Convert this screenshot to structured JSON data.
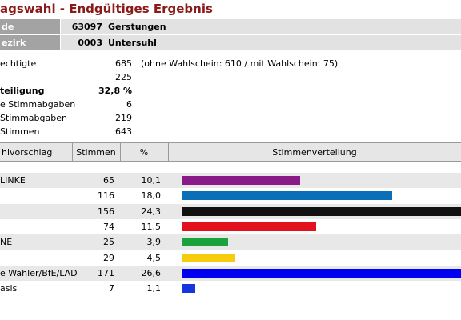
{
  "header": {
    "title": "agswahl - Endgültiges Ergebnis"
  },
  "location": [
    {
      "label": "de",
      "code": "63097",
      "name": "Gerstungen"
    },
    {
      "label": "ezirk",
      "code": "0003",
      "name": "Untersuhl"
    }
  ],
  "stats": [
    {
      "label": "echtigte",
      "value": "685",
      "note": "(ohne Wahlschein: 610 / mit Wahlschein: 75)"
    },
    {
      "value": "225"
    },
    {
      "label": "teiligung",
      "value": "32,8 %",
      "bold": true
    },
    {
      "label": "e Stimmabgaben",
      "value": "6"
    },
    {
      "label": "Stimmabgaben",
      "value": "219"
    },
    {
      "label": "Stimmen",
      "value": "643"
    }
  ],
  "table": {
    "columns": [
      "hlvorschlag",
      "Stimmen",
      "%",
      "Stimmenverteilung"
    ],
    "rows": [
      {
        "label": "LINKE",
        "votes": "65",
        "share": {
          "value": 10.1,
          "label": "10,1"
        },
        "color": "#8b1a89"
      },
      {
        "votes": "116",
        "share": {
          "value": 18.0,
          "label": "18,0"
        },
        "color": "#0a6fb8"
      },
      {
        "votes": "156",
        "share": {
          "value": 24.3,
          "label": "24,3"
        },
        "color": "#111111"
      },
      {
        "votes": "74",
        "share": {
          "value": 11.5,
          "label": "11,5"
        },
        "color": "#e3101e"
      },
      {
        "label": "NE",
        "votes": "25",
        "share": {
          "value": 3.9,
          "label": "3,9"
        },
        "color": "#1ca23c"
      },
      {
        "votes": "29",
        "share": {
          "value": 4.5,
          "label": "4,5"
        },
        "color": "#f7cc0c"
      },
      {
        "label": "e Wähler/BfE/LAD",
        "votes": "171",
        "share": {
          "value": 26.6,
          "label": "26,6"
        },
        "color": "#0000f0"
      },
      {
        "label": "asis",
        "votes": "7",
        "share": {
          "value": 1.1,
          "label": "1,1"
        },
        "color": "#1535e0"
      }
    ]
  }
}
